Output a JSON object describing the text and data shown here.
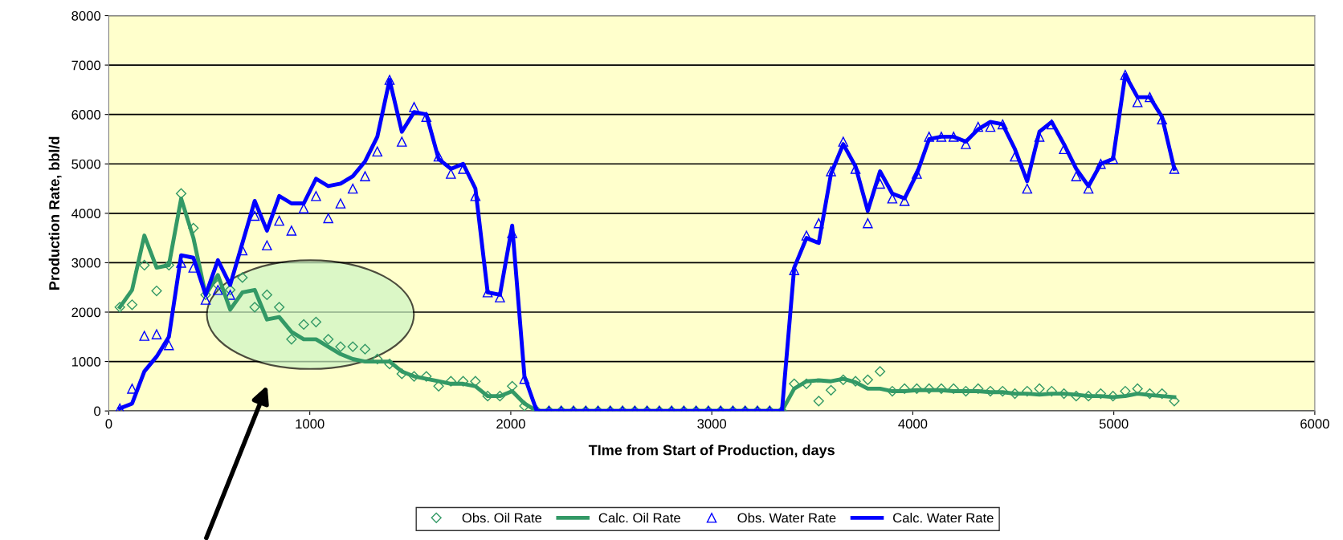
{
  "chart_data": {
    "type": "line",
    "xlabel": "TIme from Start of Production, days",
    "ylabel": "Production Rate, bbl/d",
    "x": [
      55,
      116,
      177,
      238,
      299,
      360,
      421,
      482,
      543,
      604,
      665,
      726,
      787,
      848,
      909,
      970,
      1031,
      1092,
      1153,
      1214,
      1275,
      1336,
      1397,
      1458,
      1519,
      1580,
      1641,
      1702,
      1763,
      1824,
      1885,
      1946,
      2007,
      2068,
      2129,
      2190,
      2251,
      2312,
      2373,
      2434,
      2495,
      2556,
      2617,
      2678,
      2739,
      2800,
      2861,
      2922,
      2983,
      3044,
      3105,
      3166,
      3227,
      3288,
      3349,
      3410,
      3471,
      3532,
      3593,
      3654,
      3715,
      3776,
      3837,
      3898,
      3959,
      4020,
      4081,
      4142,
      4203,
      4264,
      4325,
      4386,
      4447,
      4508,
      4569,
      4630,
      4691,
      4752,
      4813,
      4874,
      4935,
      4996,
      5057,
      5118,
      5179,
      5240,
      5301
    ],
    "series": [
      {
        "name": "Obs. Oil Rate",
        "type": "scatter",
        "marker": "diamond",
        "color": "#339966",
        "values": [
          2100,
          2150,
          2950,
          2430,
          2950,
          4400,
          3700,
          2350,
          2550,
          2450,
          2700,
          2100,
          2350,
          2100,
          1450,
          1750,
          1800,
          1450,
          1300,
          1300,
          1250,
          1050,
          950,
          750,
          700,
          700,
          500,
          600,
          600,
          600,
          300,
          300,
          500,
          100,
          0,
          0,
          0,
          0,
          0,
          0,
          0,
          0,
          0,
          0,
          0,
          0,
          0,
          0,
          0,
          0,
          0,
          0,
          0,
          0,
          0,
          550,
          550,
          200,
          420,
          630,
          600,
          630,
          800,
          400,
          450,
          450,
          450,
          450,
          450,
          400,
          450,
          400,
          400,
          350,
          400,
          450,
          400,
          350,
          300,
          300,
          350,
          300,
          400,
          450,
          350,
          350,
          200
        ]
      },
      {
        "name": "Calc. Oil Rate",
        "marker": "none",
        "color": "#339966",
        "values": [
          2100,
          2450,
          3550,
          2900,
          2950,
          4300,
          3500,
          2350,
          2750,
          2050,
          2400,
          2450,
          1850,
          1900,
          1600,
          1450,
          1450,
          1300,
          1150,
          1050,
          1000,
          1000,
          1000,
          800,
          700,
          650,
          600,
          550,
          550,
          500,
          300,
          300,
          400,
          150,
          0,
          0,
          0,
          0,
          0,
          0,
          0,
          0,
          0,
          0,
          0,
          0,
          0,
          0,
          0,
          0,
          0,
          0,
          0,
          0,
          0,
          450,
          600,
          620,
          600,
          650,
          580,
          450,
          450,
          400,
          400,
          420,
          420,
          420,
          400,
          400,
          400,
          380,
          380,
          350,
          350,
          330,
          350,
          350,
          330,
          300,
          300,
          280,
          300,
          350,
          320,
          300,
          280
        ]
      },
      {
        "name": "Obs. Water Rate",
        "type": "scatter",
        "marker": "triangle",
        "color": "#0000ff",
        "values": [
          50,
          450,
          1520,
          1550,
          1330,
          3000,
          2900,
          2250,
          2450,
          2350,
          3250,
          3950,
          3350,
          3850,
          3650,
          4100,
          4350,
          3900,
          4200,
          4500,
          4750,
          5250,
          6700,
          5450,
          6150,
          5950,
          5150,
          4800,
          4900,
          4350,
          2400,
          2300,
          3600,
          650,
          0,
          0,
          0,
          0,
          0,
          0,
          0,
          0,
          0,
          0,
          0,
          0,
          0,
          0,
          0,
          0,
          0,
          0,
          0,
          0,
          0,
          2850,
          3550,
          3800,
          4850,
          5450,
          4900,
          3800,
          4600,
          4300,
          4250,
          4800,
          5550,
          5550,
          5550,
          5400,
          5750,
          5750,
          5800,
          5150,
          4500,
          5550,
          5800,
          5300,
          4750,
          4500,
          5000,
          5100,
          6800,
          6250,
          6350,
          5900,
          4900
        ]
      },
      {
        "name": "Calc. Water Rate",
        "marker": "none",
        "color": "#0000ff",
        "values": [
          50,
          150,
          800,
          1100,
          1500,
          3150,
          3100,
          2350,
          3050,
          2550,
          3400,
          4250,
          3650,
          4350,
          4200,
          4200,
          4700,
          4550,
          4600,
          4750,
          5050,
          5550,
          6700,
          5650,
          6050,
          6000,
          5100,
          4900,
          5000,
          4500,
          2400,
          2350,
          3750,
          700,
          0,
          0,
          0,
          0,
          0,
          0,
          0,
          0,
          0,
          0,
          0,
          0,
          0,
          0,
          0,
          0,
          0,
          0,
          0,
          0,
          0,
          2900,
          3500,
          3400,
          4800,
          5400,
          4950,
          4050,
          4850,
          4400,
          4300,
          4800,
          5500,
          5550,
          5550,
          5450,
          5700,
          5850,
          5800,
          5300,
          4650,
          5650,
          5850,
          5400,
          4900,
          4550,
          5000,
          5100,
          6800,
          6350,
          6350,
          5950,
          4900
        ]
      }
    ],
    "xlim": [
      0,
      6000
    ],
    "xticks": [
      0,
      1000,
      2000,
      3000,
      4000,
      5000,
      6000
    ],
    "ylim": [
      0,
      8000
    ],
    "yticks": [
      0,
      1000,
      2000,
      3000,
      4000,
      5000,
      6000,
      7000,
      8000
    ],
    "grid": "y",
    "legend": "bottom"
  }
}
